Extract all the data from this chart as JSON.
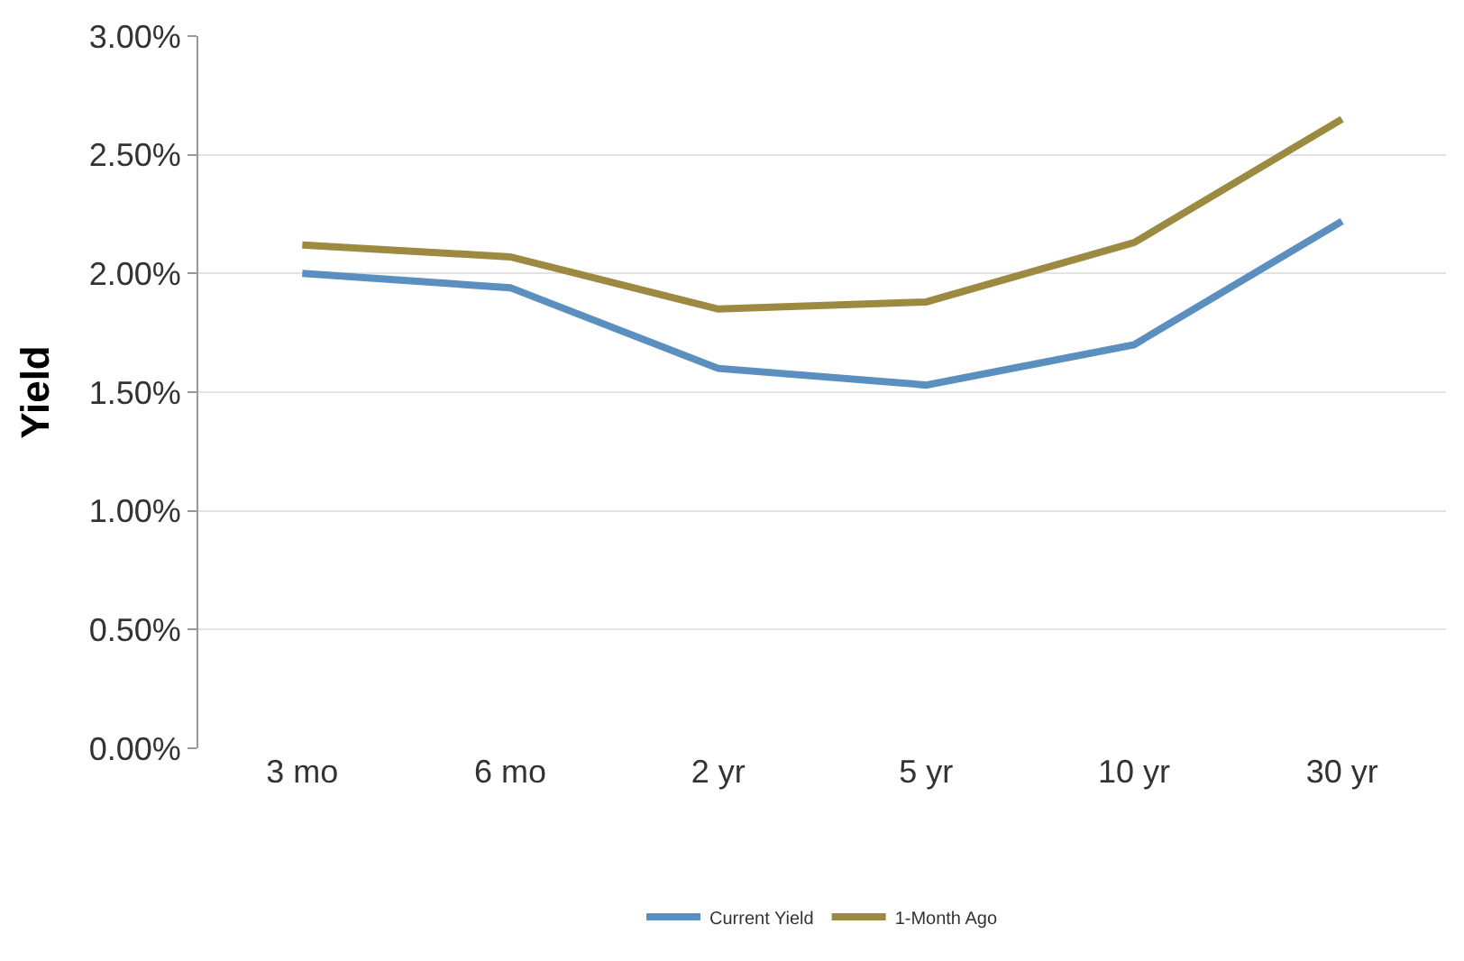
{
  "chart_data": {
    "type": "line",
    "ylabel": "Yield",
    "categories": [
      "3 mo",
      "6 mo",
      "2 yr",
      "5 yr",
      "10 yr",
      "30 yr"
    ],
    "series": [
      {
        "name": "Current Yield",
        "color": "#5b8fbf",
        "values": [
          2.0,
          1.94,
          1.6,
          1.53,
          1.7,
          2.22
        ]
      },
      {
        "name": "1-Month Ago",
        "color": "#9c8a41",
        "values": [
          2.12,
          2.07,
          1.85,
          1.88,
          2.13,
          2.65
        ]
      }
    ],
    "ylim": [
      0,
      3
    ],
    "yticks": [
      {
        "value": 0,
        "label": "0.00%"
      },
      {
        "value": 0.5,
        "label": "0.50%"
      },
      {
        "value": 1,
        "label": "1.00%"
      },
      {
        "value": 1.5,
        "label": "1.50%"
      },
      {
        "value": 2,
        "label": "2.00%"
      },
      {
        "value": 2.5,
        "label": "2.50%"
      },
      {
        "value": 3,
        "label": "3.00%"
      }
    ],
    "grid": "y",
    "legend": "bottom",
    "marker": "none",
    "line_style": "solid"
  }
}
